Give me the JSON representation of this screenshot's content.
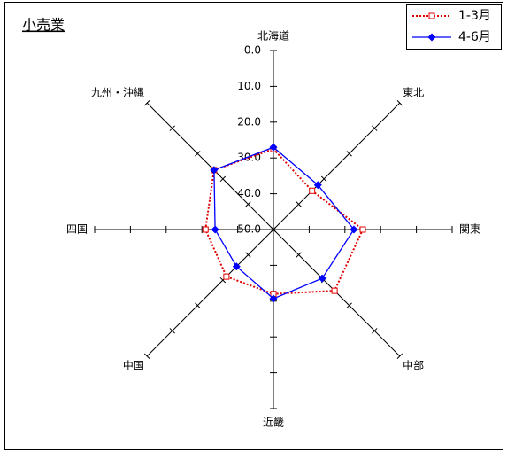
{
  "chart_data": {
    "type": "radar",
    "title": "小売業",
    "categories": [
      "北海道",
      "東北",
      "関東",
      "中部",
      "近畿",
      "中国",
      "四国",
      "九州・沖縄"
    ],
    "series": [
      {
        "name": "1-3月",
        "color": "#e00000",
        "values": [
          27.5,
          34.7,
          25.0,
          25.8,
          32.0,
          31.4,
          31.0,
          26.5
        ]
      },
      {
        "name": "4-6月",
        "color": "#0000ff",
        "values": [
          27.0,
          32.4,
          27.5,
          30.7,
          30.7,
          35.4,
          33.7,
          26.5
        ]
      }
    ],
    "rlim": [
      0,
      50
    ],
    "reversed": true,
    "rticks": [
      {
        "value": 0,
        "label": "0.0"
      },
      {
        "value": 10,
        "label": "10.0"
      },
      {
        "value": 20,
        "label": "20.0"
      },
      {
        "value": 30,
        "label": "30.0"
      },
      {
        "value": 40,
        "label": "40.0"
      },
      {
        "value": 50,
        "label": "50.0"
      }
    ],
    "legend": "upper right"
  }
}
